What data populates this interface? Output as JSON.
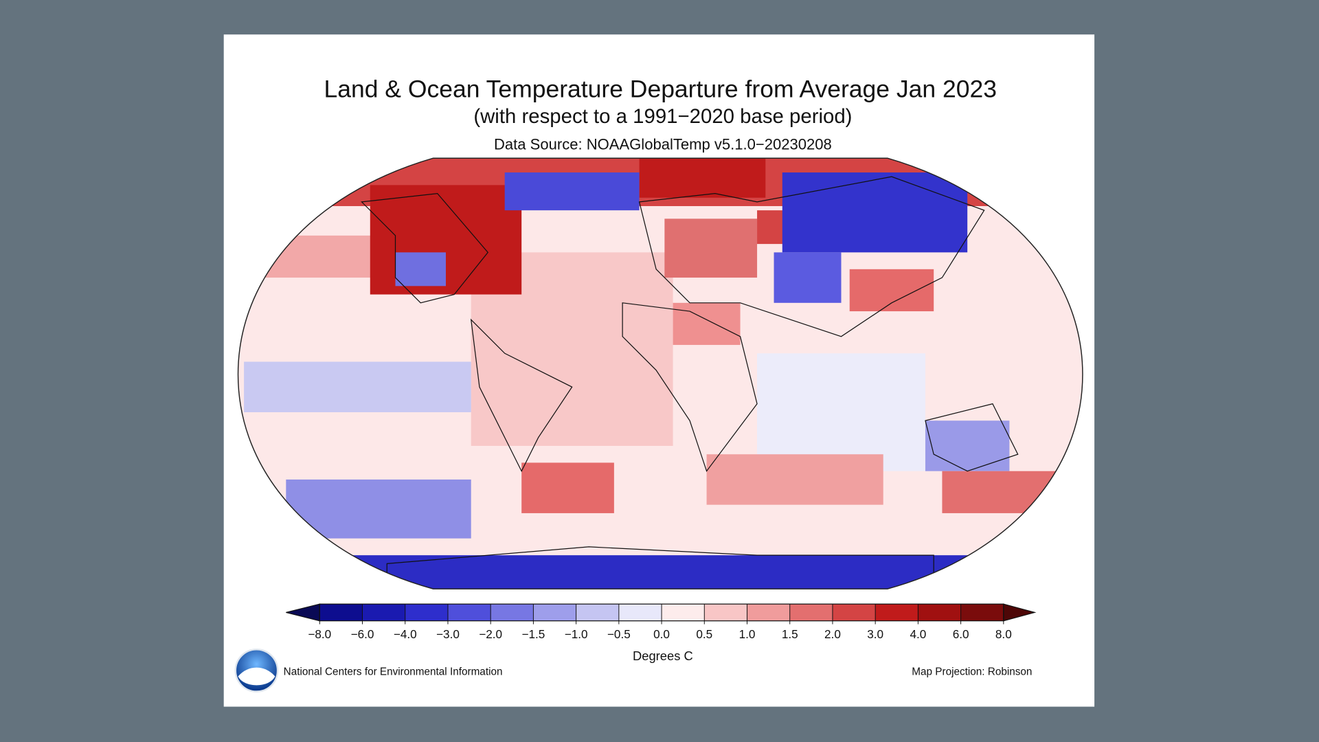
{
  "header": {
    "title": "Land & Ocean Temperature Departure from Average Jan 2023",
    "subtitle": "(with respect to a 1991−2020 base period)",
    "source": "Data Source: NOAAGlobalTemp v5.1.0−20230208"
  },
  "colorbar": {
    "ticks": [
      "−8.0",
      "−6.0",
      "−4.0",
      "−3.0",
      "−2.0",
      "−1.5",
      "−1.0",
      "−0.5",
      "0.0",
      "0.5",
      "1.0",
      "1.5",
      "2.0",
      "3.0",
      "4.0",
      "6.0",
      "8.0"
    ],
    "colors": [
      "#0a0a55",
      "#0d0d8f",
      "#1a1ab0",
      "#2e2ecc",
      "#4f4fdb",
      "#7777e3",
      "#9e9eeb",
      "#c5c5f2",
      "#e8e8fa",
      "#fdecec",
      "#f8c6c6",
      "#f09c9c",
      "#e36f6f",
      "#d44444",
      "#c01b1b",
      "#a01010",
      "#7a0c0c",
      "#4e0707"
    ],
    "label": "Degrees C"
  },
  "footer": {
    "left": "National Centers for Environmental Information",
    "right": "Map Projection: Robinson"
  }
}
